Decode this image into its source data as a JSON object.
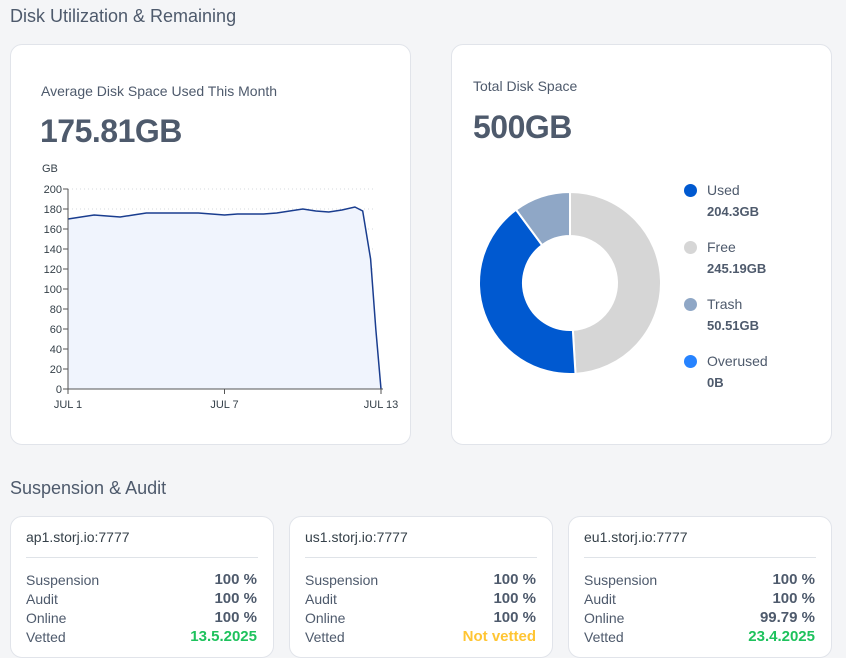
{
  "sections": {
    "disk_title": "Disk Utilization & Remaining",
    "audit_title": "Suspension & Audit"
  },
  "avg_card": {
    "subtitle": "Average Disk Space Used This Month",
    "value": "175.81GB"
  },
  "total_card": {
    "subtitle": "Total Disk Space",
    "value": "500GB",
    "legend": [
      {
        "label": "Used",
        "value": "204.3GB",
        "color": "#0059d0"
      },
      {
        "label": "Free",
        "value": "245.19GB",
        "color": "#d6d6d6"
      },
      {
        "label": "Trash",
        "value": "50.51GB",
        "color": "#8fa7c6"
      },
      {
        "label": "Overused",
        "value": "0B",
        "color": "#2683ff"
      }
    ]
  },
  "chart_data": [
    {
      "type": "area",
      "ylabel": "GB",
      "ylim": [
        0,
        200
      ],
      "yticks": [
        "0",
        "20",
        "40",
        "60",
        "80",
        "100",
        "120",
        "140",
        "160",
        "180",
        "200"
      ],
      "xtick_labels": [
        "JUL 1",
        "JUL 7",
        "JUL 13"
      ],
      "grid": "horizontal dotted",
      "line_color": "#1a3d8f",
      "fill_color": "#f0f4fd",
      "series": [
        {
          "x": [
            1,
            1.5,
            2,
            2.5,
            3,
            3.5,
            4,
            4.5,
            5,
            5.5,
            6,
            6.5,
            7,
            7.5,
            8,
            8.5,
            9,
            9.5,
            10,
            10.5,
            11,
            11.5,
            12,
            12.3,
            12.6,
            12.8,
            13
          ],
          "values": [
            170,
            172,
            174,
            173,
            172,
            174,
            176,
            176,
            176,
            176,
            176,
            175,
            174,
            175,
            175,
            175,
            176,
            178,
            180,
            178,
            177,
            179,
            182,
            178,
            130,
            60,
            0
          ]
        }
      ]
    },
    {
      "type": "pie",
      "donut": true,
      "categories": [
        "Free",
        "Used",
        "Trash",
        "Overused"
      ],
      "values": [
        245.19,
        204.3,
        50.51,
        0
      ],
      "colors": [
        "#d6d6d6",
        "#0059d0",
        "#8fa7c6",
        "#2683ff"
      ]
    }
  ],
  "satellites": [
    {
      "name": "ap1.storj.io:7777",
      "suspension": "100 %",
      "audit": "100 %",
      "online": "100 %",
      "vetted": "13.5.2025",
      "vetted_color": "green"
    },
    {
      "name": "us1.storj.io:7777",
      "suspension": "100 %",
      "audit": "100 %",
      "online": "100 %",
      "vetted": "Not vetted",
      "vetted_color": "yellow"
    },
    {
      "name": "eu1.storj.io:7777",
      "suspension": "100 %",
      "audit": "100 %",
      "online": "99.79 %",
      "vetted": "23.4.2025",
      "vetted_color": "green"
    }
  ],
  "row_labels": {
    "suspension": "Suspension",
    "audit": "Audit",
    "online": "Online",
    "vetted": "Vetted"
  }
}
